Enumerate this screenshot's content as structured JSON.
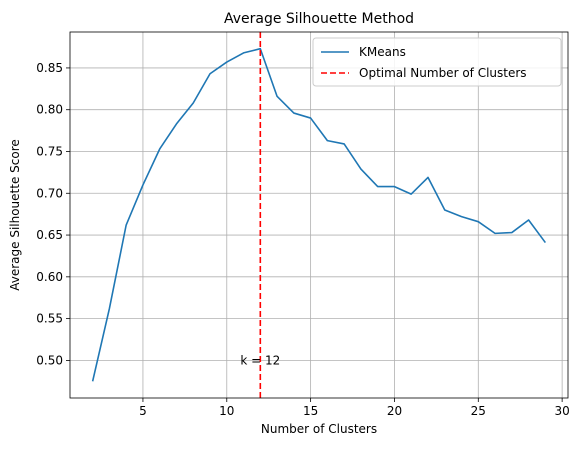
{
  "chart_data": {
    "type": "line",
    "title": "Average Silhouette Method",
    "xlabel": "Number of Clusters",
    "ylabel": "Average Silhouette Score",
    "xlim": [
      0.65,
      30.35
    ],
    "ylim": [
      0.455,
      0.893
    ],
    "xticks": [
      5,
      10,
      15,
      20,
      25,
      30
    ],
    "yticks": [
      0.5,
      0.55,
      0.6,
      0.65,
      0.7,
      0.75,
      0.8,
      0.85
    ],
    "xtick_labels": [
      "5",
      "10",
      "15",
      "20",
      "25",
      "30"
    ],
    "ytick_labels": [
      "0.50",
      "0.55",
      "0.60",
      "0.65",
      "0.70",
      "0.75",
      "0.80",
      "0.85"
    ],
    "grid": true,
    "legend_position": "top-right",
    "series": [
      {
        "name": "KMeans",
        "color": "#1f77b4",
        "x": [
          2,
          3,
          4,
          5,
          6,
          7,
          8,
          9,
          10,
          11,
          12,
          13,
          14,
          15,
          16,
          17,
          18,
          19,
          20,
          21,
          22,
          23,
          24,
          25,
          26,
          27,
          28,
          29
        ],
        "y": [
          0.475,
          0.562,
          0.662,
          0.71,
          0.753,
          0.783,
          0.808,
          0.843,
          0.857,
          0.868,
          0.873,
          0.816,
          0.796,
          0.79,
          0.763,
          0.759,
          0.729,
          0.708,
          0.708,
          0.699,
          0.719,
          0.68,
          0.672,
          0.666,
          0.652,
          0.653,
          0.668,
          0.641
        ]
      }
    ],
    "reference_line": {
      "name": "Optimal Number of Clusters",
      "x": 12,
      "color": "#ff0000",
      "style": "dashed"
    },
    "annotation": {
      "text": "k = 12",
      "x": 12,
      "y": 0.5
    }
  }
}
